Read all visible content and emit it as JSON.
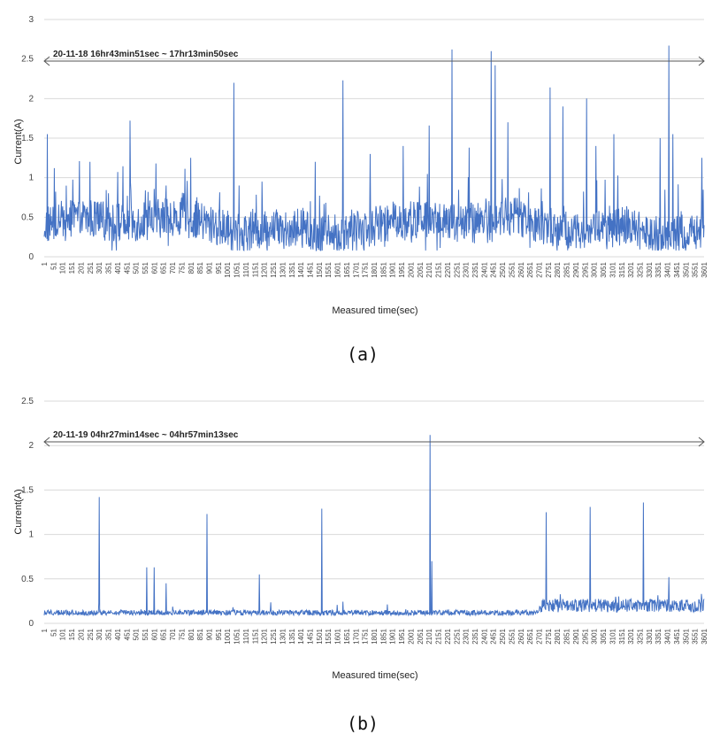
{
  "chart_data": [
    {
      "type": "line",
      "panel_caption": "(a)",
      "annotation": "20-11-18 16hr43min51sec ~ 17hr13min50sec",
      "xlabel": "Measured time(sec)",
      "ylabel": "Current(A)",
      "ylim": [
        0,
        3
      ],
      "yticks": [
        "0",
        "0.5",
        "1",
        "1.5",
        "2",
        "2.5",
        "3"
      ],
      "x_range": [
        1,
        3601
      ],
      "xticks": [
        "1",
        "51",
        "101",
        "151",
        "201",
        "251",
        "301",
        "351",
        "401",
        "451",
        "501",
        "551",
        "601",
        "651",
        "701",
        "751",
        "801",
        "851",
        "901",
        "951",
        "1001",
        "1051",
        "1101",
        "1151",
        "1201",
        "1251",
        "1301",
        "1351",
        "1401",
        "1451",
        "1501",
        "1551",
        "1601",
        "1651",
        "1701",
        "1751",
        "1801",
        "1851",
        "1901",
        "1951",
        "2001",
        "2051",
        "2101",
        "2151",
        "2201",
        "2251",
        "2301",
        "2351",
        "2401",
        "2451",
        "2501",
        "2551",
        "2601",
        "2651",
        "2701",
        "2751",
        "2801",
        "2851",
        "2901",
        "2951",
        "3001",
        "3051",
        "3101",
        "3151",
        "3201",
        "3251",
        "3301",
        "3351",
        "3401",
        "3451",
        "3501",
        "3551",
        "3601"
      ],
      "grid": true,
      "color": "#4472c4",
      "baseline": 0.4,
      "noise": 0.25,
      "spikes": [
        [
          18,
          1.55
        ],
        [
          250,
          1.2
        ],
        [
          470,
          1.72
        ],
        [
          610,
          1.18
        ],
        [
          800,
          1.25
        ],
        [
          1035,
          2.2
        ],
        [
          1190,
          0.95
        ],
        [
          1480,
          1.2
        ],
        [
          1630,
          2.23
        ],
        [
          1780,
          1.3
        ],
        [
          1960,
          1.4
        ],
        [
          2100,
          1.66
        ],
        [
          2225,
          2.62
        ],
        [
          2320,
          1.38
        ],
        [
          2440,
          2.6
        ],
        [
          2460,
          2.42
        ],
        [
          2530,
          1.7
        ],
        [
          2760,
          2.14
        ],
        [
          2830,
          1.9
        ],
        [
          2960,
          2.0
        ],
        [
          3010,
          1.4
        ],
        [
          3110,
          1.55
        ],
        [
          3360,
          1.5
        ],
        [
          3410,
          2.67
        ],
        [
          3430,
          1.55
        ],
        [
          3590,
          1.25
        ]
      ]
    },
    {
      "type": "line",
      "panel_caption": "(b)",
      "annotation": "20-11-19 04hr27min14sec ~ 04hr57min13sec",
      "xlabel": "Measured time(sec)",
      "ylabel": "Current(A)",
      "ylim": [
        0,
        2.5
      ],
      "yticks": [
        "0",
        "0.5",
        "1",
        "1.5",
        "2",
        "2.5"
      ],
      "x_range": [
        1,
        3601
      ],
      "xticks": [
        "1",
        "51",
        "101",
        "151",
        "201",
        "251",
        "301",
        "351",
        "401",
        "451",
        "501",
        "551",
        "601",
        "651",
        "701",
        "751",
        "801",
        "851",
        "901",
        "951",
        "1001",
        "1051",
        "1101",
        "1151",
        "1201",
        "1251",
        "1301",
        "1351",
        "1401",
        "1451",
        "1501",
        "1551",
        "1601",
        "1651",
        "1701",
        "1751",
        "1801",
        "1851",
        "1901",
        "1951",
        "2001",
        "2051",
        "2101",
        "2151",
        "2201",
        "2251",
        "2301",
        "2351",
        "2401",
        "2451",
        "2501",
        "2551",
        "2601",
        "2651",
        "2701",
        "2751",
        "2801",
        "2851",
        "2901",
        "2951",
        "3001",
        "3051",
        "3101",
        "3151",
        "3201",
        "3251",
        "3301",
        "3351",
        "3401",
        "3451",
        "3501",
        "3551",
        "3601"
      ],
      "grid": true,
      "color": "#4472c4",
      "baseline": 0.12,
      "noise": 0.03,
      "late_baseline": 0.2,
      "late_from": 2700,
      "spikes": [
        [
          300,
          1.42
        ],
        [
          560,
          0.63
        ],
        [
          600,
          0.63
        ],
        [
          665,
          0.45
        ],
        [
          890,
          1.23
        ],
        [
          1175,
          0.55
        ],
        [
          1515,
          1.29
        ],
        [
          2105,
          2.12
        ],
        [
          2115,
          0.7
        ],
        [
          2740,
          1.25
        ],
        [
          2980,
          1.31
        ],
        [
          3270,
          1.36
        ],
        [
          3410,
          0.52
        ]
      ]
    }
  ]
}
